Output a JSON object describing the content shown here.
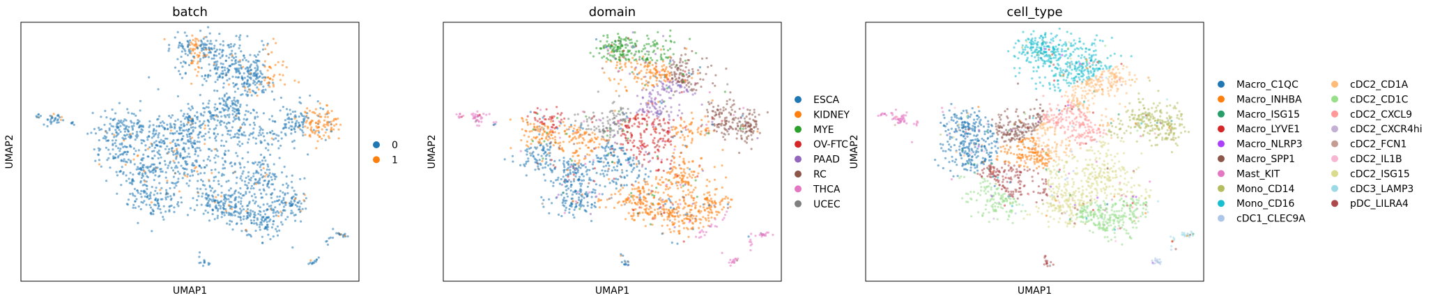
{
  "chart_data": [
    {
      "type": "scatter",
      "title": "batch",
      "xlabel": "UMAP1",
      "ylabel": "UMAP2",
      "grid": false,
      "ticks": false,
      "legend_position": "right",
      "legend": [
        {
          "label": "0",
          "color": "#1f77b4"
        },
        {
          "label": "1",
          "color": "#ff7f0e"
        }
      ]
    },
    {
      "type": "scatter",
      "title": "domain",
      "xlabel": "UMAP1",
      "ylabel": "UMAP2",
      "grid": false,
      "ticks": false,
      "legend_position": "right",
      "legend": [
        {
          "label": "ESCA",
          "color": "#1f77b4"
        },
        {
          "label": "KIDNEY",
          "color": "#ff7f0e"
        },
        {
          "label": "MYE",
          "color": "#2ca02c"
        },
        {
          "label": "OV-FTC",
          "color": "#d62728"
        },
        {
          "label": "PAAD",
          "color": "#9467bd"
        },
        {
          "label": "RC",
          "color": "#8c564b"
        },
        {
          "label": "THCA",
          "color": "#e377c2"
        },
        {
          "label": "UCEC",
          "color": "#7f7f7f"
        }
      ]
    },
    {
      "type": "scatter",
      "title": "cell_type",
      "xlabel": "UMAP1",
      "ylabel": "UMAP2",
      "grid": false,
      "ticks": false,
      "legend_position": "right",
      "legend": [
        {
          "label": "Macro_C1QC",
          "color": "#1f77b4"
        },
        {
          "label": "Macro_INHBA",
          "color": "#ff7f0e"
        },
        {
          "label": "Macro_ISG15",
          "color": "#279e68"
        },
        {
          "label": "Macro_LYVE1",
          "color": "#d62728"
        },
        {
          "label": "Macro_NLRP3",
          "color": "#aa40fc"
        },
        {
          "label": "Macro_SPP1",
          "color": "#8c564b"
        },
        {
          "label": "Mast_KIT",
          "color": "#e377c2"
        },
        {
          "label": "Mono_CD14",
          "color": "#b5bd61"
        },
        {
          "label": "Mono_CD16",
          "color": "#17becf"
        },
        {
          "label": "cDC1_CLEC9A",
          "color": "#aec7e8"
        },
        {
          "label": "cDC2_CD1A",
          "color": "#ffbb78"
        },
        {
          "label": "cDC2_CD1C",
          "color": "#98df8a"
        },
        {
          "label": "cDC2_CXCL9",
          "color": "#ff9896"
        },
        {
          "label": "cDC2_CXCR4hi",
          "color": "#c5b0d5"
        },
        {
          "label": "cDC2_FCN1",
          "color": "#c49c94"
        },
        {
          "label": "cDC2_IL1B",
          "color": "#f7b6d2"
        },
        {
          "label": "cDC2_ISG15",
          "color": "#dbdb8d"
        },
        {
          "label": "cDC3_LAMP3",
          "color": "#9edae5"
        },
        {
          "label": "pDC_LILRA4",
          "color": "#ad494a"
        }
      ]
    }
  ]
}
